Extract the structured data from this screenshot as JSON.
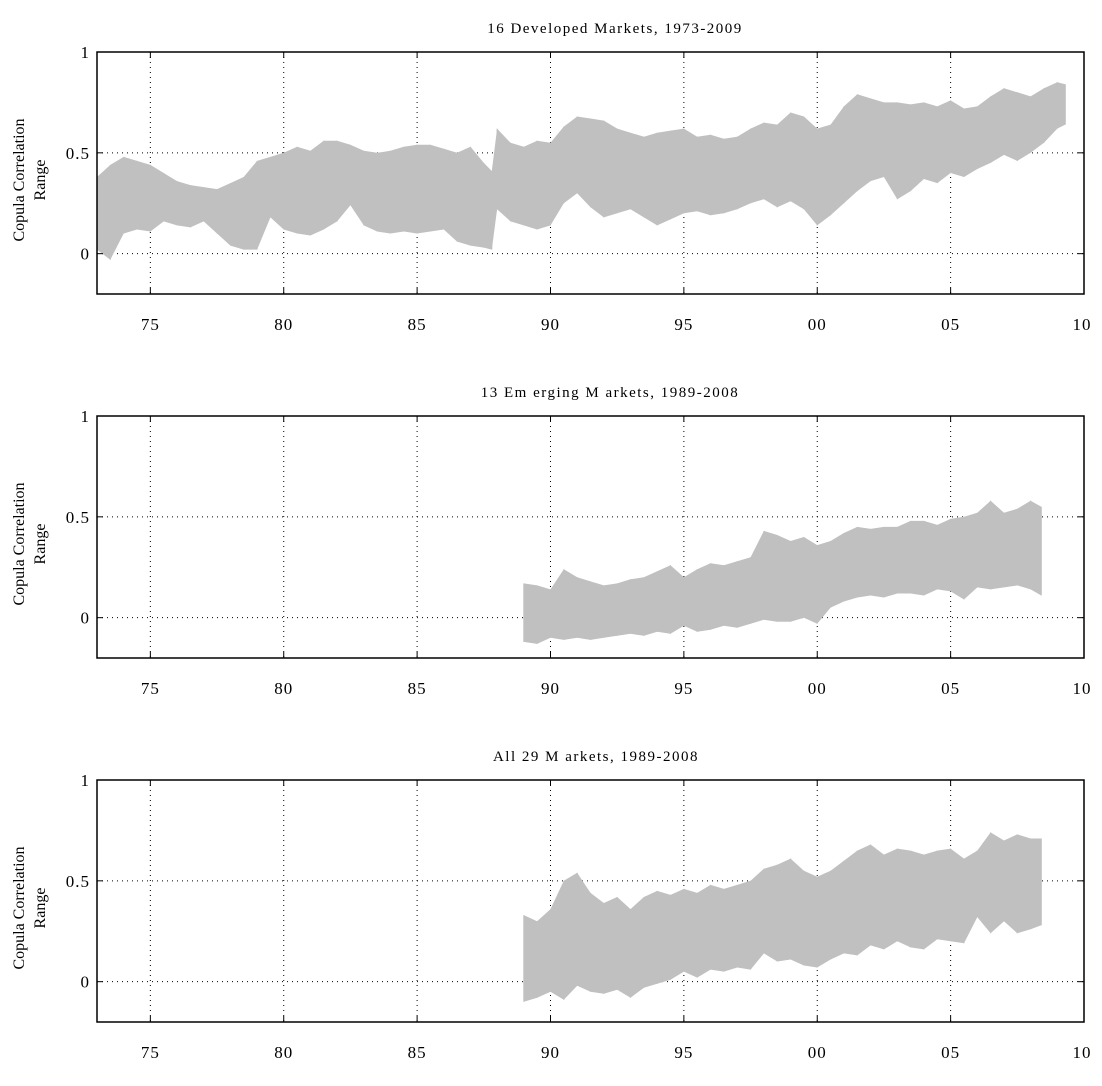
{
  "figure": {
    "background": "#ffffff",
    "band_color": "#c0c0c0",
    "axis_color": "#000000"
  },
  "chart_data": [
    {
      "type": "area",
      "title": "16 Developed Markets, 1973-2009",
      "ylabel_line1": "Copula Correlation",
      "ylabel_line2": "Range",
      "x_ticks": [
        1975,
        1980,
        1985,
        1990,
        1995,
        2000,
        2005,
        2010
      ],
      "x_tick_labels": [
        "75",
        "80",
        "85",
        "90",
        "95",
        "00",
        "05",
        "10"
      ],
      "y_ticks": [
        0,
        0.5,
        1
      ],
      "y_tick_labels": [
        "0",
        "0.5",
        "1"
      ],
      "xlim": [
        1973,
        2010
      ],
      "ylim": [
        -0.2,
        1
      ],
      "grid": true,
      "series": [
        {
          "x": [
            1973.0,
            1973.5,
            1974.0,
            1974.5,
            1975.0,
            1975.5,
            1976.0,
            1976.5,
            1977.0,
            1977.5,
            1978.0,
            1978.5,
            1979.0,
            1979.5,
            1980.0,
            1980.5,
            1981.0,
            1981.5,
            1982.0,
            1982.5,
            1983.0,
            1983.5,
            1984.0,
            1984.5,
            1985.0,
            1985.5,
            1986.0,
            1986.5,
            1987.0,
            1987.5,
            1987.8,
            1988.0,
            1988.5,
            1989.0,
            1989.5,
            1990.0,
            1990.5,
            1991.0,
            1991.5,
            1992.0,
            1992.5,
            1993.0,
            1993.5,
            1994.0,
            1994.5,
            1995.0,
            1995.5,
            1996.0,
            1996.5,
            1997.0,
            1997.5,
            1998.0,
            1998.5,
            1999.0,
            1999.5,
            2000.0,
            2000.5,
            2001.0,
            2001.5,
            2002.0,
            2002.5,
            2003.0,
            2003.5,
            2004.0,
            2004.5,
            2005.0,
            2005.5,
            2006.0,
            2006.5,
            2007.0,
            2007.5,
            2008.0,
            2008.5,
            2009.0,
            2009.3
          ],
          "upper": [
            0.38,
            0.44,
            0.48,
            0.46,
            0.44,
            0.4,
            0.36,
            0.34,
            0.33,
            0.32,
            0.35,
            0.38,
            0.46,
            0.48,
            0.5,
            0.53,
            0.51,
            0.56,
            0.56,
            0.54,
            0.51,
            0.5,
            0.51,
            0.53,
            0.54,
            0.54,
            0.52,
            0.5,
            0.53,
            0.45,
            0.41,
            0.62,
            0.55,
            0.53,
            0.56,
            0.55,
            0.63,
            0.68,
            0.67,
            0.66,
            0.62,
            0.6,
            0.58,
            0.6,
            0.61,
            0.62,
            0.58,
            0.59,
            0.57,
            0.58,
            0.62,
            0.65,
            0.64,
            0.7,
            0.68,
            0.62,
            0.64,
            0.73,
            0.79,
            0.77,
            0.75,
            0.75,
            0.74,
            0.75,
            0.73,
            0.76,
            0.72,
            0.73,
            0.78,
            0.82,
            0.8,
            0.78,
            0.82,
            0.85,
            0.84
          ],
          "lower": [
            0.02,
            -0.03,
            0.1,
            0.12,
            0.11,
            0.16,
            0.14,
            0.13,
            0.16,
            0.1,
            0.04,
            0.02,
            0.02,
            0.18,
            0.12,
            0.1,
            0.09,
            0.12,
            0.16,
            0.24,
            0.14,
            0.11,
            0.1,
            0.11,
            0.1,
            0.11,
            0.12,
            0.06,
            0.04,
            0.03,
            0.02,
            0.22,
            0.16,
            0.14,
            0.12,
            0.14,
            0.25,
            0.3,
            0.23,
            0.18,
            0.2,
            0.22,
            0.18,
            0.14,
            0.17,
            0.2,
            0.21,
            0.19,
            0.2,
            0.22,
            0.25,
            0.27,
            0.23,
            0.26,
            0.22,
            0.14,
            0.19,
            0.25,
            0.31,
            0.36,
            0.38,
            0.27,
            0.31,
            0.37,
            0.35,
            0.4,
            0.38,
            0.42,
            0.45,
            0.49,
            0.46,
            0.5,
            0.55,
            0.62,
            0.64
          ]
        }
      ]
    },
    {
      "type": "area",
      "title": "13 Em erging M arkets, 1989-2008",
      "ylabel_line1": "Copula Correlation",
      "ylabel_line2": "Range",
      "x_ticks": [
        1975,
        1980,
        1985,
        1990,
        1995,
        2000,
        2005,
        2010
      ],
      "x_tick_labels": [
        "75",
        "80",
        "85",
        "90",
        "95",
        "00",
        "05",
        "10"
      ],
      "y_ticks": [
        0,
        0.5,
        1
      ],
      "y_tick_labels": [
        "0",
        "0.5",
        "1"
      ],
      "xlim": [
        1973,
        2010
      ],
      "ylim": [
        -0.2,
        1
      ],
      "grid": true,
      "series": [
        {
          "x": [
            1989.0,
            1989.5,
            1990.0,
            1990.5,
            1991.0,
            1991.5,
            1992.0,
            1992.5,
            1993.0,
            1993.5,
            1994.0,
            1994.5,
            1995.0,
            1995.5,
            1996.0,
            1996.5,
            1997.0,
            1997.5,
            1998.0,
            1998.5,
            1999.0,
            1999.5,
            2000.0,
            2000.5,
            2001.0,
            2001.5,
            2002.0,
            2002.5,
            2003.0,
            2003.5,
            2004.0,
            2004.5,
            2005.0,
            2005.5,
            2006.0,
            2006.5,
            2007.0,
            2007.5,
            2008.0,
            2008.4
          ],
          "upper": [
            0.17,
            0.16,
            0.14,
            0.24,
            0.2,
            0.18,
            0.16,
            0.17,
            0.19,
            0.2,
            0.23,
            0.26,
            0.2,
            0.24,
            0.27,
            0.26,
            0.28,
            0.3,
            0.43,
            0.41,
            0.38,
            0.4,
            0.36,
            0.38,
            0.42,
            0.45,
            0.44,
            0.45,
            0.45,
            0.48,
            0.48,
            0.46,
            0.49,
            0.5,
            0.52,
            0.58,
            0.52,
            0.54,
            0.58,
            0.55
          ],
          "lower": [
            -0.12,
            -0.13,
            -0.1,
            -0.11,
            -0.1,
            -0.11,
            -0.1,
            -0.09,
            -0.08,
            -0.09,
            -0.07,
            -0.08,
            -0.04,
            -0.07,
            -0.06,
            -0.04,
            -0.05,
            -0.03,
            -0.01,
            -0.02,
            -0.02,
            0.0,
            -0.03,
            0.05,
            0.08,
            0.1,
            0.11,
            0.1,
            0.12,
            0.12,
            0.11,
            0.14,
            0.13,
            0.09,
            0.15,
            0.14,
            0.15,
            0.16,
            0.14,
            0.11
          ]
        }
      ]
    },
    {
      "type": "area",
      "title": "All 29 M arkets, 1989-2008",
      "ylabel_line1": "Copula Correlation",
      "ylabel_line2": "Range",
      "x_ticks": [
        1975,
        1980,
        1985,
        1990,
        1995,
        2000,
        2005,
        2010
      ],
      "x_tick_labels": [
        "75",
        "80",
        "85",
        "90",
        "95",
        "00",
        "05",
        "10"
      ],
      "y_ticks": [
        0,
        0.5,
        1
      ],
      "y_tick_labels": [
        "0",
        "0.5",
        "1"
      ],
      "xlim": [
        1973,
        2010
      ],
      "ylim": [
        -0.2,
        1
      ],
      "grid": true,
      "series": [
        {
          "x": [
            1989.0,
            1989.5,
            1990.0,
            1990.5,
            1991.0,
            1991.5,
            1992.0,
            1992.5,
            1993.0,
            1993.5,
            1994.0,
            1994.5,
            1995.0,
            1995.5,
            1996.0,
            1996.5,
            1997.0,
            1997.5,
            1998.0,
            1998.5,
            1999.0,
            1999.5,
            2000.0,
            2000.5,
            2001.0,
            2001.5,
            2002.0,
            2002.5,
            2003.0,
            2003.5,
            2004.0,
            2004.5,
            2005.0,
            2005.5,
            2006.0,
            2006.5,
            2007.0,
            2007.5,
            2008.0,
            2008.4
          ],
          "upper": [
            0.33,
            0.3,
            0.36,
            0.5,
            0.54,
            0.44,
            0.39,
            0.42,
            0.36,
            0.42,
            0.45,
            0.43,
            0.46,
            0.44,
            0.48,
            0.46,
            0.48,
            0.5,
            0.56,
            0.58,
            0.61,
            0.55,
            0.52,
            0.55,
            0.6,
            0.65,
            0.68,
            0.63,
            0.66,
            0.65,
            0.63,
            0.65,
            0.66,
            0.61,
            0.65,
            0.74,
            0.7,
            0.73,
            0.71,
            0.71
          ],
          "lower": [
            -0.1,
            -0.08,
            -0.05,
            -0.09,
            -0.02,
            -0.05,
            -0.06,
            -0.04,
            -0.08,
            -0.03,
            -0.01,
            0.01,
            0.05,
            0.02,
            0.06,
            0.05,
            0.07,
            0.06,
            0.14,
            0.1,
            0.11,
            0.08,
            0.07,
            0.11,
            0.14,
            0.13,
            0.18,
            0.16,
            0.2,
            0.17,
            0.16,
            0.21,
            0.2,
            0.19,
            0.32,
            0.24,
            0.3,
            0.24,
            0.26,
            0.28
          ]
        }
      ]
    }
  ]
}
